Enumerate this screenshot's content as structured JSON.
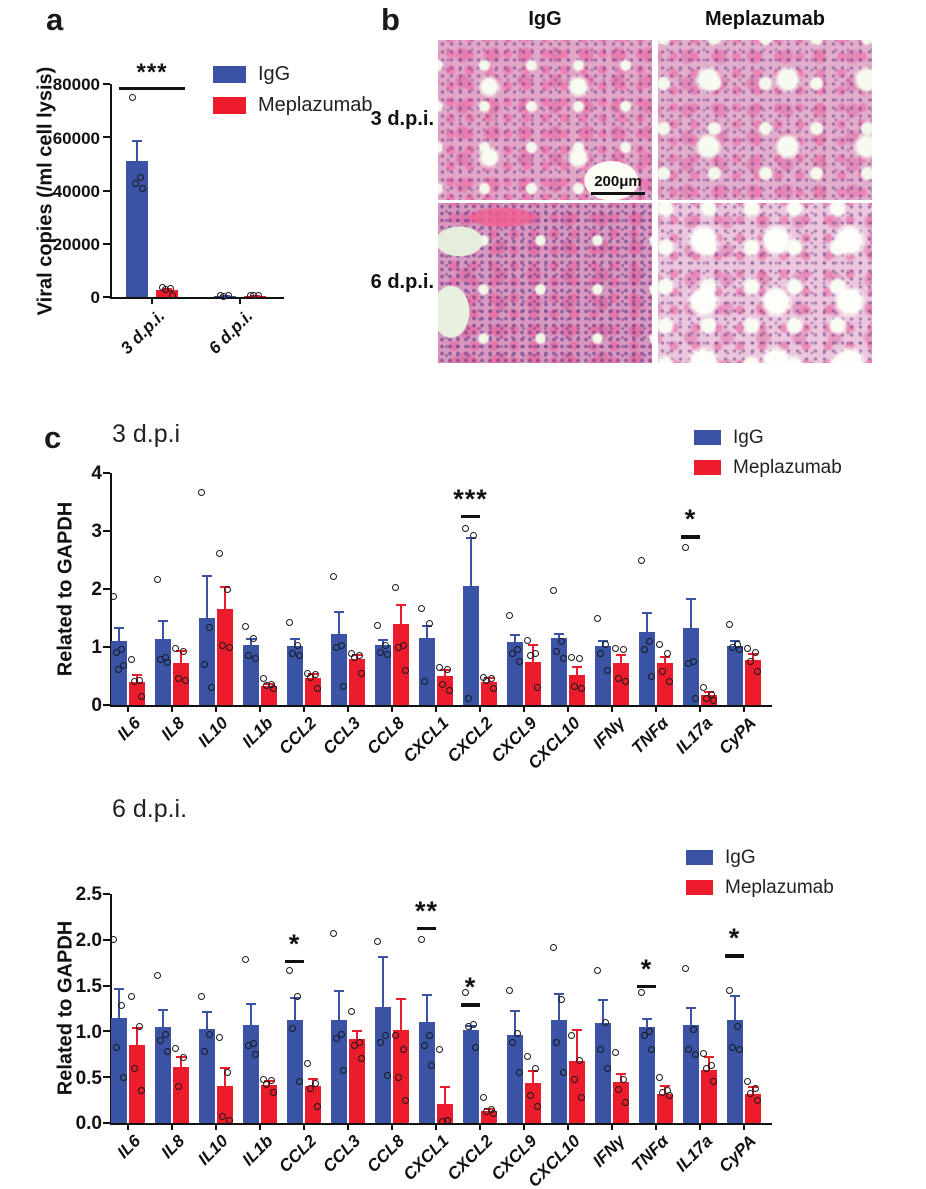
{
  "colors": {
    "igg": "#3a53a5",
    "meplazumab": "#ec1c2d",
    "sig": "#111111"
  },
  "panels": {
    "a_label": "a",
    "b_label": "b",
    "c_label": "c"
  },
  "legend": {
    "igg": "IgG",
    "meplazumab": "Meplazumab"
  },
  "panel_b": {
    "columns": [
      "IgG",
      "Meplazumab"
    ],
    "rows": [
      "3 d.p.i.",
      "6 d.p.i."
    ],
    "scale_bar_label": "200μm"
  },
  "chart_data": [
    {
      "id": "viral",
      "type": "bar",
      "title": "",
      "ylabel": "Viral copies (/ml cell lysis)",
      "ylim": [
        0,
        80000
      ],
      "grid": false,
      "legend_position": "top-right",
      "yticks": [
        {
          "v": 0,
          "label": "0"
        },
        {
          "v": 20000,
          "label": "20000"
        },
        {
          "v": 40000,
          "label": "40000"
        },
        {
          "v": 60000,
          "label": "60000"
        },
        {
          "v": 80000,
          "label": "80000"
        }
      ],
      "categories": [
        "3 d.p.i.",
        "6 d.p.i."
      ],
      "series": [
        {
          "name": "IgG",
          "color": "#3a53a5",
          "values": [
            51000,
            400
          ],
          "errors_up": [
            8000,
            200
          ],
          "points": [
            [
              75000,
              44800,
              42500,
              40800
            ],
            [
              600,
              450,
              300
            ]
          ]
        },
        {
          "name": "Meplazumab",
          "color": "#ec1c2d",
          "values": [
            2600,
            400
          ],
          "errors_up": [
            800,
            200
          ],
          "points": [
            [
              3400,
              3100,
              2900,
              700
            ],
            [
              650,
              500,
              400
            ]
          ]
        }
      ],
      "significance": [
        {
          "category": "3 d.p.i.",
          "label": "***",
          "y": 79000,
          "span_pair": true
        }
      ]
    },
    {
      "id": "dpi3",
      "type": "bar",
      "title": "3 d.p.i",
      "ylabel": "Related to GAPDH",
      "ylim": [
        0,
        4
      ],
      "grid": false,
      "legend_position": "top-right",
      "yticks": [
        {
          "v": 0,
          "label": "0"
        },
        {
          "v": 1,
          "label": "1"
        },
        {
          "v": 2,
          "label": "2"
        },
        {
          "v": 3,
          "label": "3"
        },
        {
          "v": 4,
          "label": "4"
        }
      ],
      "categories": [
        "IL6",
        "IL8",
        "IL10",
        "IL1b",
        "CCL2",
        "CCL3",
        "CCL8",
        "CXCL1",
        "CXCL2",
        "CXCL9",
        "CXCL10",
        "IFNγ",
        "TNFα",
        "IL17a",
        "CyPA"
      ],
      "series": [
        {
          "name": "IgG",
          "color": "#3a53a5",
          "values": [
            1.1,
            1.13,
            1.5,
            1.03,
            1.02,
            1.23,
            1.03,
            1.15,
            2.05,
            1.08,
            1.15,
            1.02,
            1.26,
            1.33,
            1.02
          ],
          "errors_up": [
            0.25,
            0.34,
            0.75,
            0.12,
            0.13,
            0.39,
            0.1,
            0.23,
            0.85,
            0.14,
            0.1,
            0.1,
            0.34,
            0.52,
            0.1
          ],
          "points": [
            [
              1.87,
              0.95,
              0.9,
              0.68,
              0.62
            ],
            [
              2.17,
              0.82,
              0.78,
              0.73
            ],
            [
              3.67,
              1.33,
              0.7,
              0.3
            ],
            [
              1.35,
              1.15,
              0.85,
              0.8
            ],
            [
              1.42,
              1.02,
              0.88,
              0.85
            ],
            [
              2.22,
              1.02,
              1.0,
              0.32
            ],
            [
              1.37,
              1.02,
              0.9,
              0.87
            ],
            [
              1.67,
              1.4,
              0.4
            ],
            [
              3.05,
              2.93,
              0.12
            ],
            [
              1.55,
              0.95,
              0.88,
              0.75
            ],
            [
              1.98,
              1.1,
              0.92,
              0.8
            ],
            [
              1.5,
              1.05,
              0.88,
              0.6
            ],
            [
              2.5,
              1.1,
              0.95,
              0.5
            ],
            [
              2.72,
              0.75,
              0.72,
              0.12
            ],
            [
              1.38,
              1.05,
              1.0,
              0.95
            ]
          ]
        },
        {
          "name": "Meplazumab",
          "color": "#ec1c2d",
          "values": [
            0.4,
            0.73,
            1.65,
            0.33,
            0.47,
            0.79,
            1.4,
            0.5,
            0.4,
            0.75,
            0.52,
            0.72,
            0.72,
            0.17,
            0.78
          ],
          "errors_up": [
            0.13,
            0.22,
            0.4,
            0.05,
            0.08,
            0.09,
            0.35,
            0.12,
            0.08,
            0.3,
            0.15,
            0.16,
            0.13,
            0.08,
            0.12
          ],
          "points": [
            [
              0.78,
              0.42,
              0.4,
              0.15
            ],
            [
              0.97,
              0.93,
              0.45,
              0.42
            ],
            [
              2.62,
              2.0,
              1.02,
              1.0
            ],
            [
              0.45,
              0.35,
              0.33,
              0.28
            ],
            [
              0.55,
              0.52,
              0.48,
              0.28
            ],
            [
              0.88,
              0.85,
              0.82,
              0.55
            ],
            [
              2.02,
              1.02,
              1.0,
              0.6
            ],
            [
              0.65,
              0.62,
              0.35,
              0.25
            ],
            [
              0.48,
              0.45,
              0.42,
              0.28
            ],
            [
              1.12,
              0.88,
              0.85,
              0.3
            ],
            [
              0.82,
              0.8,
              0.32,
              0.28
            ],
            [
              0.98,
              0.95,
              0.45,
              0.4
            ],
            [
              1.05,
              0.88,
              0.58,
              0.4
            ],
            [
              0.3,
              0.18,
              0.12,
              0.08
            ],
            [
              0.97,
              0.9,
              0.75,
              0.58
            ]
          ]
        }
      ],
      "significance": [
        {
          "category": "CXCL2",
          "label": "***",
          "y": 3.28
        },
        {
          "category": "IL17a",
          "label": "*",
          "y": 2.93
        }
      ]
    },
    {
      "id": "dpi6",
      "type": "bar",
      "title": "6 d.p.i.",
      "ylabel": "Related to GAPDH",
      "ylim": [
        0,
        2.5
      ],
      "grid": false,
      "legend_position": "top-right",
      "yticks": [
        {
          "v": 0,
          "label": "0.0"
        },
        {
          "v": 0.5,
          "label": "0.5"
        },
        {
          "v": 1.0,
          "label": "1.0"
        },
        {
          "v": 1.5,
          "label": "1.5"
        },
        {
          "v": 2.0,
          "label": "2.0"
        },
        {
          "v": 2.5,
          "label": "2.5"
        }
      ],
      "categories": [
        "IL6",
        "IL8",
        "IL10",
        "IL1b",
        "CCL2",
        "CCL3",
        "CCL8",
        "CXCL1",
        "CXCL2",
        "CXCL9",
        "CXCL10",
        "IFNγ",
        "TNFα",
        "IL17a",
        "CyPA"
      ],
      "series": [
        {
          "name": "IgG",
          "color": "#3a53a5",
          "values": [
            1.15,
            1.05,
            1.03,
            1.07,
            1.13,
            1.13,
            1.27,
            1.1,
            1.02,
            0.96,
            1.12,
            1.09,
            1.05,
            1.07,
            1.12
          ],
          "errors_up": [
            0.32,
            0.2,
            0.19,
            0.24,
            0.25,
            0.32,
            0.55,
            0.31,
            0.05,
            0.27,
            0.3,
            0.26,
            0.1,
            0.2,
            0.28
          ],
          "points": [
            [
              2.0,
              1.28,
              0.82,
              0.5
            ],
            [
              1.61,
              0.97,
              0.9,
              0.78
            ],
            [
              1.38,
              0.97,
              0.78
            ],
            [
              1.79,
              0.87,
              0.85,
              0.75
            ],
            [
              1.67,
              1.38,
              1.03,
              0.45
            ],
            [
              2.07,
              0.97,
              0.92,
              0.57
            ],
            [
              1.98,
              0.95,
              0.88,
              0.52
            ],
            [
              2.0,
              0.95,
              0.85,
              0.63
            ],
            [
              1.42,
              1.08,
              1.05,
              0.82
            ],
            [
              1.45,
              0.98,
              0.88,
              0.55
            ],
            [
              1.92,
              1.35,
              0.88,
              0.55
            ],
            [
              1.67,
              1.1,
              0.8,
              0.6
            ],
            [
              1.43,
              1.0,
              0.95,
              0.8
            ],
            [
              1.69,
              1.02,
              0.8,
              0.75
            ],
            [
              1.45,
              1.05,
              0.82,
              0.8
            ]
          ]
        },
        {
          "name": "Meplazumab",
          "color": "#ec1c2d",
          "values": [
            0.85,
            0.61,
            0.4,
            0.42,
            0.4,
            0.92,
            1.01,
            0.21,
            0.13,
            0.44,
            0.68,
            0.45,
            0.32,
            0.58,
            0.32
          ],
          "errors_up": [
            0.2,
            0.12,
            0.21,
            0.05,
            0.09,
            0.1,
            0.35,
            0.19,
            0.03,
            0.14,
            0.35,
            0.1,
            0.1,
            0.15,
            0.08
          ],
          "points": [
            [
              1.38,
              1.05,
              0.6,
              0.35
            ],
            [
              0.81,
              0.72,
              0.4
            ],
            [
              0.93,
              0.55,
              0.07,
              0.03
            ],
            [
              0.47,
              0.46,
              0.42,
              0.33
            ],
            [
              0.65,
              0.43,
              0.38,
              0.18
            ],
            [
              1.22,
              0.88,
              0.85,
              0.7
            ],
            [
              0.95,
              0.8,
              0.5,
              0.25
            ],
            [
              0.8,
              0.03,
              0.02
            ],
            [
              0.28,
              0.15,
              0.13,
              0.1
            ],
            [
              0.73,
              0.6,
              0.3,
              0.18
            ],
            [
              0.95,
              0.68,
              0.48,
              0.28
            ],
            [
              0.77,
              0.48,
              0.37,
              0.22
            ],
            [
              0.5,
              0.35,
              0.33,
              0.3
            ],
            [
              0.76,
              0.63,
              0.6,
              0.45
            ],
            [
              0.45,
              0.38,
              0.32,
              0.25
            ]
          ]
        }
      ],
      "significance": [
        {
          "category": "CCL2",
          "label": "*",
          "y": 1.78
        },
        {
          "category": "CXCL1",
          "label": "**",
          "y": 2.14
        },
        {
          "category": "CXCL2",
          "label": "*",
          "y": 1.31
        },
        {
          "category": "TNFα",
          "label": "*",
          "y": 1.51
        },
        {
          "category": "CyPA",
          "label": "*",
          "y": 1.84
        }
      ]
    }
  ]
}
